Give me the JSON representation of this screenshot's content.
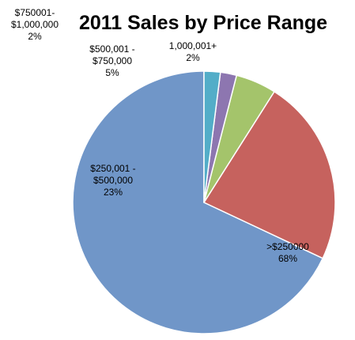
{
  "chart_data": {
    "type": "pie",
    "title": "2011 Sales by Price Range",
    "slices": [
      {
        "label": ">$250000",
        "label_lines": [
          ">$250000",
          "68%"
        ],
        "value": 68,
        "percent_label": "68%",
        "color": "#7096C8"
      },
      {
        "label": "$250,001 - $500,000",
        "label_lines": [
          "$250,001 -",
          "$500,000",
          "23%"
        ],
        "value": 23,
        "percent_label": "23%",
        "color": "#C6625E"
      },
      {
        "label": "$500,001 - $750,000",
        "label_lines": [
          "$500,001 -",
          "$750,000",
          "5%"
        ],
        "value": 5,
        "percent_label": "5%",
        "color": "#A4C46B"
      },
      {
        "label": "$750001-$1,000,000",
        "label_lines": [
          "$750001-",
          "$1,000,000",
          "2%"
        ],
        "value": 2,
        "percent_label": "2%",
        "color": "#8D76B0"
      },
      {
        "label": "1,000,001+",
        "label_lines": [
          "1,000,001+",
          "2%"
        ],
        "value": 2,
        "percent_label": "2%",
        "color": "#53ADC8"
      }
    ],
    "start": "12 o'clock",
    "direction": "counterclockwise",
    "legend": "none"
  }
}
